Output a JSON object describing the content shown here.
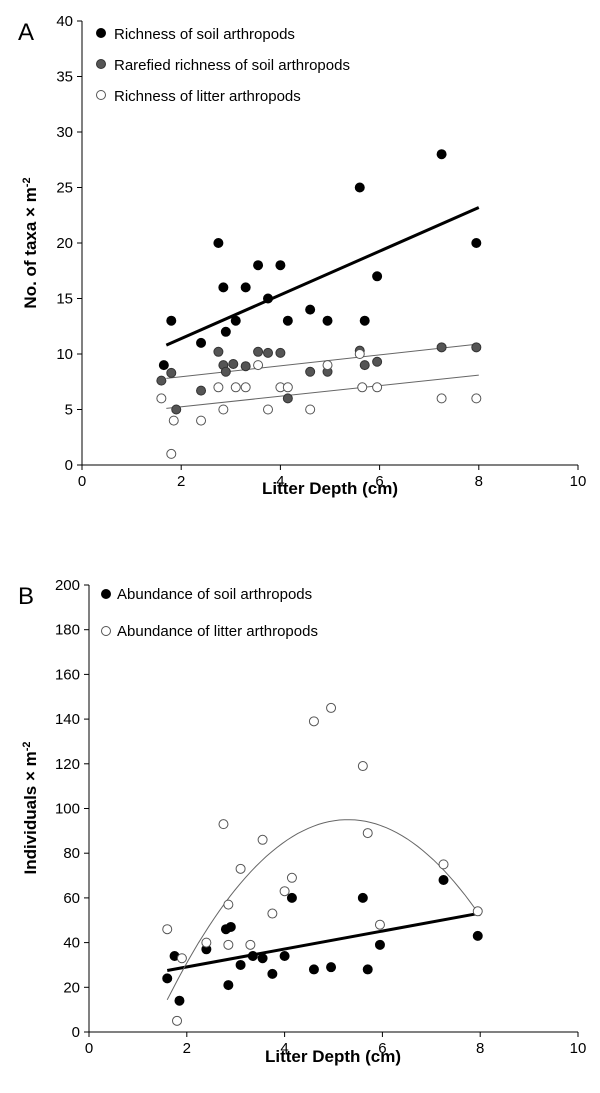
{
  "chart_data": [
    {
      "panel_label": "A",
      "type": "scatter",
      "xlabel": "Litter Depth (cm)",
      "ylabel": "No. of  taxa × m",
      "ylabel_sup": "-2",
      "xlim": [
        0,
        10
      ],
      "ylim": [
        0,
        40
      ],
      "xticks": [
        "0",
        "2",
        "4",
        "6",
        "8",
        "10"
      ],
      "yticks": [
        "0",
        "5",
        "10",
        "15",
        "20",
        "25",
        "30",
        "35",
        "40"
      ],
      "legend_position": "top-left",
      "series": [
        {
          "name": "Richness of soil arthropods",
          "marker": "filled-black",
          "color": "#000000",
          "points": [
            [
              1.65,
              9
            ],
            [
              1.8,
              13
            ],
            [
              2.4,
              11
            ],
            [
              2.75,
              20
            ],
            [
              2.85,
              16
            ],
            [
              2.9,
              12
            ],
            [
              3.1,
              13
            ],
            [
              3.3,
              16
            ],
            [
              3.55,
              18
            ],
            [
              3.75,
              15
            ],
            [
              4.0,
              18
            ],
            [
              4.15,
              13
            ],
            [
              4.6,
              14
            ],
            [
              4.95,
              13
            ],
            [
              5.6,
              25
            ],
            [
              5.7,
              13
            ],
            [
              5.95,
              17
            ],
            [
              7.25,
              28
            ],
            [
              7.95,
              20
            ]
          ],
          "trend": {
            "type": "linear",
            "x": [
              1.7,
              8.0
            ],
            "y": [
              10.8,
              23.2
            ],
            "width": 3
          }
        },
        {
          "name": "Rarefied richness of soil arthropods",
          "marker": "filled-gray",
          "color": "#555555",
          "points": [
            [
              1.6,
              7.6
            ],
            [
              1.8,
              8.3
            ],
            [
              1.9,
              5
            ],
            [
              2.4,
              6.7
            ],
            [
              2.75,
              10.2
            ],
            [
              2.85,
              9
            ],
            [
              2.9,
              8.4
            ],
            [
              3.05,
              9.1
            ],
            [
              3.3,
              8.9
            ],
            [
              3.55,
              10.2
            ],
            [
              3.75,
              10.1
            ],
            [
              4.0,
              10.1
            ],
            [
              4.15,
              6
            ],
            [
              4.6,
              8.4
            ],
            [
              4.95,
              8.4
            ],
            [
              5.6,
              10.3
            ],
            [
              5.7,
              9
            ],
            [
              5.95,
              9.3
            ],
            [
              7.25,
              10.6
            ],
            [
              7.95,
              10.6
            ]
          ],
          "trend": {
            "type": "linear",
            "x": [
              1.7,
              8.0
            ],
            "y": [
              7.8,
              10.9
            ],
            "width": 1
          }
        },
        {
          "name": "Richness of litter arthropods",
          "marker": "open",
          "color": "#555555",
          "points": [
            [
              1.6,
              6
            ],
            [
              1.8,
              1
            ],
            [
              1.85,
              4
            ],
            [
              2.4,
              4
            ],
            [
              2.75,
              7
            ],
            [
              2.85,
              5
            ],
            [
              3.1,
              7
            ],
            [
              3.3,
              7
            ],
            [
              3.55,
              9
            ],
            [
              3.75,
              5
            ],
            [
              4.0,
              7
            ],
            [
              4.15,
              7
            ],
            [
              4.6,
              5
            ],
            [
              4.95,
              9
            ],
            [
              5.65,
              7
            ],
            [
              5.95,
              7
            ],
            [
              5.6,
              10
            ],
            [
              7.25,
              6
            ],
            [
              7.95,
              6
            ]
          ],
          "trend": {
            "type": "linear",
            "x": [
              1.7,
              8.0
            ],
            "y": [
              5.1,
              8.1
            ],
            "width": 1
          }
        }
      ]
    },
    {
      "panel_label": "B",
      "type": "scatter",
      "xlabel": "Litter Depth (cm)",
      "ylabel": "Individuals × m",
      "ylabel_sup": "-2",
      "xlim": [
        0,
        10
      ],
      "ylim": [
        0,
        200
      ],
      "xticks": [
        "0",
        "2",
        "4",
        "6",
        "8",
        "10"
      ],
      "yticks": [
        "0",
        "20",
        "40",
        "60",
        "80",
        "100",
        "120",
        "140",
        "160",
        "180",
        "200"
      ],
      "legend_position": "top-left",
      "series": [
        {
          "name": "Abundance of soil arthropods",
          "marker": "filled-black",
          "color": "#000000",
          "points": [
            [
              1.6,
              24
            ],
            [
              1.75,
              34
            ],
            [
              1.85,
              14
            ],
            [
              2.4,
              37
            ],
            [
              2.8,
              46
            ],
            [
              2.85,
              21
            ],
            [
              2.9,
              47
            ],
            [
              3.1,
              30
            ],
            [
              3.35,
              34
            ],
            [
              3.55,
              33
            ],
            [
              3.75,
              26
            ],
            [
              4.0,
              34
            ],
            [
              4.15,
              60
            ],
            [
              4.6,
              28
            ],
            [
              4.95,
              29
            ],
            [
              5.6,
              60
            ],
            [
              5.7,
              28
            ],
            [
              5.95,
              39
            ],
            [
              7.25,
              68
            ],
            [
              7.95,
              43
            ]
          ],
          "trend": {
            "type": "linear",
            "x": [
              1.6,
              7.95
            ],
            "y": [
              27.5,
              53
            ],
            "width": 3
          }
        },
        {
          "name": "Abundance of litter arthropods",
          "marker": "open",
          "color": "#555555",
          "points": [
            [
              1.6,
              46
            ],
            [
              1.8,
              5
            ],
            [
              1.9,
              33
            ],
            [
              2.4,
              40
            ],
            [
              2.75,
              93
            ],
            [
              2.85,
              57
            ],
            [
              2.85,
              39
            ],
            [
              3.1,
              73
            ],
            [
              3.3,
              39
            ],
            [
              3.55,
              86
            ],
            [
              3.75,
              53
            ],
            [
              4.0,
              63
            ],
            [
              4.15,
              69
            ],
            [
              4.6,
              139
            ],
            [
              4.95,
              145
            ],
            [
              5.6,
              119
            ],
            [
              5.7,
              89
            ],
            [
              5.95,
              48
            ],
            [
              7.25,
              75
            ],
            [
              7.95,
              54
            ]
          ],
          "trend": {
            "type": "quadratic",
            "x": [
              1.6,
              8.0
            ],
            "coef": [
              -70.5,
              62.5,
              -5.9
            ],
            "width": 1
          }
        }
      ]
    }
  ]
}
